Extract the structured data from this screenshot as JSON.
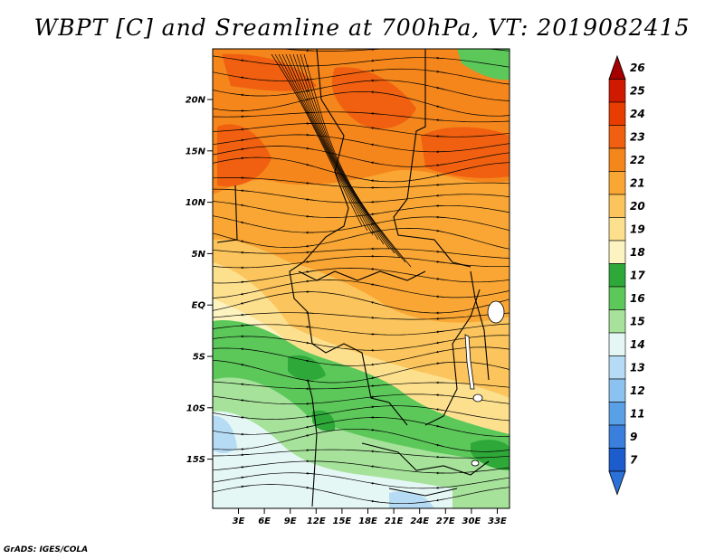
{
  "title": "WBPT [C] and Sreamline at 700hPa, VT: 2019082415",
  "footer": "GrADS: IGES/COLA",
  "lat_labels": [
    "20N",
    "15N",
    "10N",
    "5N",
    "EQ",
    "5S",
    "10S",
    "15S"
  ],
  "lon_labels": [
    "3E",
    "6E",
    "9E",
    "12E",
    "15E",
    "18E",
    "21E",
    "24E",
    "27E",
    "30E",
    "33E"
  ],
  "colorbar": {
    "levels": [
      "26",
      "25",
      "24",
      "23",
      "22",
      "21",
      "20",
      "19",
      "18",
      "17",
      "16",
      "15",
      "14",
      "13",
      "12",
      "11",
      "9",
      "7"
    ],
    "colors": [
      "#a50000",
      "#d01a00",
      "#e83c00",
      "#f06010",
      "#f5861c",
      "#f9a634",
      "#fbc45c",
      "#fde08e",
      "#fdf3c0",
      "#2fa83a",
      "#5cc85a",
      "#a6e29a",
      "#e5f7f5",
      "#b6dcf5",
      "#8cc2ef",
      "#5aa0e6",
      "#3a7fdc",
      "#1d5ccc",
      "#2b72d8"
    ]
  },
  "colors": {
    "ocean_south": "#c2e4f6",
    "green": "#5ac85a",
    "orange": "#f39a2a"
  }
}
